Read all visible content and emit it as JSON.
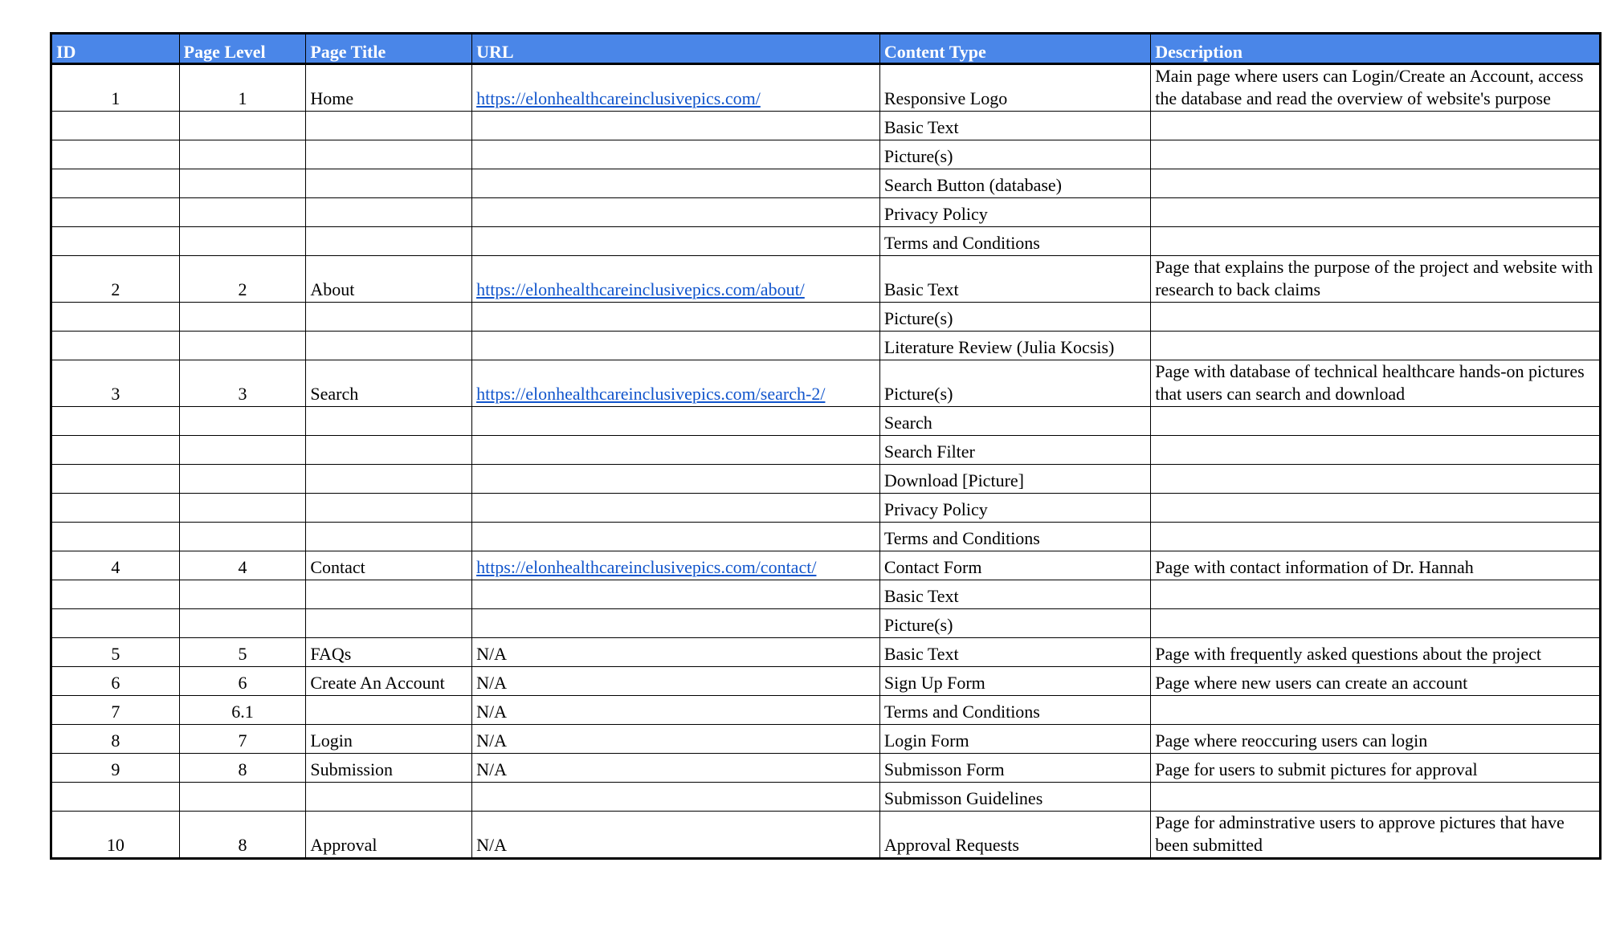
{
  "headers": [
    "ID",
    "Page Level",
    "Page Title",
    "URL",
    "Content Type",
    "Description"
  ],
  "rows": [
    {
      "id": "1",
      "level": "1",
      "title": "Home",
      "url": "https://elonhealthcareinclusivepics.com/",
      "content": "Responsive Logo",
      "desc": "Main page where users can Login/Create an Account, access the database and read the overview of website's purpose"
    },
    {
      "id": "",
      "level": "",
      "title": "",
      "url": "",
      "content": "Basic Text",
      "desc": ""
    },
    {
      "id": "",
      "level": "",
      "title": "",
      "url": "",
      "content": "Picture(s)",
      "desc": ""
    },
    {
      "id": "",
      "level": "",
      "title": "",
      "url": "",
      "content": "Search Button (database)",
      "desc": ""
    },
    {
      "id": "",
      "level": "",
      "title": "",
      "url": "",
      "content": "Privacy Policy",
      "desc": ""
    },
    {
      "id": "",
      "level": "",
      "title": "",
      "url": "",
      "content": "Terms and Conditions",
      "desc": ""
    },
    {
      "id": "2",
      "level": "2",
      "title": "About",
      "url": "https://elonhealthcareinclusivepics.com/about/",
      "content": "Basic Text",
      "desc": "Page that explains the purpose of the project and website with research to back claims"
    },
    {
      "id": "",
      "level": "",
      "title": "",
      "url": "",
      "content": "Picture(s)",
      "desc": ""
    },
    {
      "id": "",
      "level": "",
      "title": "",
      "url": "",
      "content": "Literature Review (Julia Kocsis)",
      "desc": ""
    },
    {
      "id": "3",
      "level": "3",
      "title": "Search",
      "url": "https://elonhealthcareinclusivepics.com/search-2/",
      "content": "Picture(s)",
      "desc": "Page with database of technical healthcare hands-on pictures that users can search and download"
    },
    {
      "id": "",
      "level": "",
      "title": "",
      "url": "",
      "content": "Search",
      "desc": ""
    },
    {
      "id": "",
      "level": "",
      "title": "",
      "url": "",
      "content": "Search Filter",
      "desc": ""
    },
    {
      "id": "",
      "level": "",
      "title": "",
      "url": "",
      "content": "Download [Picture]",
      "desc": ""
    },
    {
      "id": "",
      "level": "",
      "title": "",
      "url": "",
      "content": "Privacy Policy",
      "desc": ""
    },
    {
      "id": "",
      "level": "",
      "title": "",
      "url": "",
      "content": "Terms and Conditions",
      "desc": ""
    },
    {
      "id": "4",
      "level": "4",
      "title": "Contact",
      "url": "https://elonhealthcareinclusivepics.com/contact/",
      "content": "Contact Form",
      "desc": "Page with contact information of Dr. Hannah"
    },
    {
      "id": "",
      "level": "",
      "title": "",
      "url": "",
      "content": "Basic Text",
      "desc": ""
    },
    {
      "id": "",
      "level": "",
      "title": "",
      "url": "",
      "content": "Picture(s)",
      "desc": ""
    },
    {
      "id": "5",
      "level": "5",
      "title": "FAQs",
      "url": "N/A",
      "content": "Basic Text",
      "desc": "Page with frequently asked questions about the project"
    },
    {
      "id": "6",
      "level": "6",
      "title": "Create An Account",
      "url": "N/A",
      "content": "Sign Up Form",
      "desc": "Page where new users can create an account"
    },
    {
      "id": "7",
      "level": "6.1",
      "title": "",
      "url": "N/A",
      "content": "Terms and Conditions",
      "desc": ""
    },
    {
      "id": "8",
      "level": "7",
      "title": "Login",
      "url": "N/A",
      "content": "Login Form",
      "desc": "Page where reoccuring users can login"
    },
    {
      "id": "9",
      "level": "8",
      "title": "Submission",
      "url": "N/A",
      "content": "Submisson Form",
      "desc": "Page for users to submit pictures for approval"
    },
    {
      "id": "",
      "level": "",
      "title": "",
      "url": "",
      "content": "Submisson Guidelines",
      "desc": ""
    },
    {
      "id": "10",
      "level": "8",
      "title": "Approval",
      "url": "N/A",
      "content": "Approval Requests",
      "desc": "Page for adminstrative users to approve pictures that have been submitted"
    }
  ],
  "colors": {
    "header_bg": "#4a86e8",
    "header_text": "#ffffff",
    "link": "#1155cc"
  }
}
